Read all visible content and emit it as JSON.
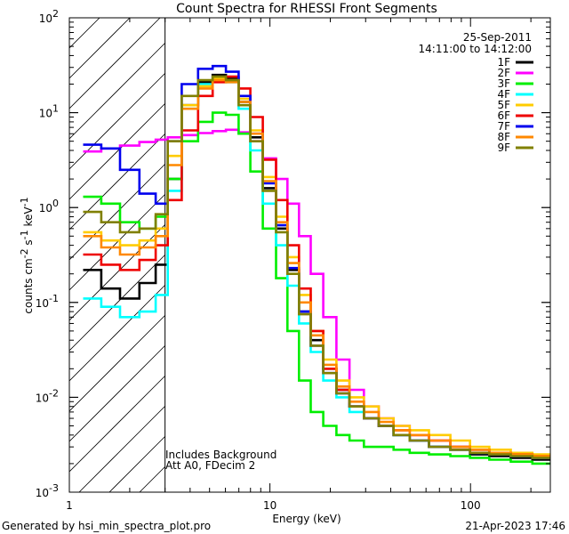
{
  "chart_data": {
    "type": "line",
    "title": "Count Spectra for RHESSI Front Segments",
    "xlabel": "Energy (keV)",
    "ylabel_parts": {
      "prefix": "counts cm",
      "exp1": "-2",
      "mid1": " s",
      "exp2": "-1",
      "mid2": " keV",
      "exp3": "-1"
    },
    "xscale": "log",
    "yscale": "log",
    "xlim": [
      1,
      250
    ],
    "ylim": [
      0.001,
      100
    ],
    "x_ticks": [
      1,
      10,
      100
    ],
    "x_tick_labels": [
      "1",
      "10",
      "100"
    ],
    "y_ticks": [
      0.001,
      0.01,
      0.1,
      1,
      10,
      100
    ],
    "y_tick_labels": [
      {
        "base": "10",
        "exp": "-3"
      },
      {
        "base": "10",
        "exp": "-2"
      },
      {
        "base": "10",
        "exp": "-1"
      },
      {
        "base": "10",
        "exp": "0"
      },
      {
        "base": "10",
        "exp": "1"
      },
      {
        "base": "10",
        "exp": "2"
      }
    ],
    "hatched_region_keV": [
      1,
      3
    ],
    "date": "25-Sep-2011",
    "time_range": "14:11:00 to 14:12:00",
    "annotations": [
      "Includes Background",
      "Att A0, FDecim 2"
    ],
    "x_energy_keV": [
      1.3,
      1.6,
      2.0,
      2.5,
      2.9,
      3.3,
      4.0,
      4.8,
      5.6,
      6.5,
      7.5,
      8.5,
      10,
      11.5,
      13,
      15,
      17,
      20,
      23,
      27,
      32,
      38,
      45,
      55,
      70,
      90,
      110,
      140,
      180,
      230
    ],
    "series": [
      {
        "name": "1F",
        "color": "#000000",
        "values": [
          0.22,
          0.14,
          0.11,
          0.16,
          0.25,
          2.0,
          12,
          21,
          25,
          23,
          13,
          5.5,
          1.6,
          0.6,
          0.22,
          0.08,
          0.04,
          0.02,
          0.012,
          0.008,
          0.006,
          0.005,
          0.004,
          0.0035,
          0.003,
          0.0028,
          0.0025,
          0.0024,
          0.0023,
          0.0022
        ]
      },
      {
        "name": "2F",
        "color": "#ff00ff",
        "values": [
          3.9,
          4.2,
          4.5,
          4.9,
          5.2,
          5.5,
          5.8,
          6.1,
          6.4,
          6.6,
          6.2,
          5.0,
          3.3,
          2.0,
          1.1,
          0.5,
          0.2,
          0.07,
          0.025,
          0.012,
          0.008,
          0.006,
          0.005,
          0.004,
          0.0035,
          0.003,
          0.0028,
          0.0026,
          0.0025,
          0.0024
        ]
      },
      {
        "name": "3F",
        "color": "#00ee00",
        "values": [
          1.3,
          1.1,
          0.7,
          0.6,
          0.8,
          2.0,
          5.0,
          8.0,
          10,
          9.5,
          6.0,
          2.4,
          0.6,
          0.18,
          0.05,
          0.015,
          0.007,
          0.005,
          0.004,
          0.0035,
          0.003,
          0.003,
          0.0028,
          0.0026,
          0.0025,
          0.0024,
          0.0023,
          0.0022,
          0.0021,
          0.002
        ]
      },
      {
        "name": "4F",
        "color": "#00ffff",
        "values": [
          0.11,
          0.09,
          0.07,
          0.08,
          0.12,
          1.5,
          11,
          20,
          23,
          21,
          11,
          4.0,
          1.1,
          0.4,
          0.15,
          0.06,
          0.03,
          0.015,
          0.01,
          0.007,
          0.006,
          0.005,
          0.004,
          0.0035,
          0.003,
          0.0028,
          0.0026,
          0.0025,
          0.0024,
          0.0023
        ]
      },
      {
        "name": "5F",
        "color": "#ffcc00",
        "values": [
          0.55,
          0.45,
          0.4,
          0.45,
          0.6,
          3.5,
          12,
          19,
          23,
          22,
          14,
          6.5,
          2.1,
          0.8,
          0.3,
          0.12,
          0.05,
          0.025,
          0.015,
          0.01,
          0.008,
          0.006,
          0.005,
          0.0045,
          0.004,
          0.0035,
          0.003,
          0.0028,
          0.0026,
          0.0025
        ]
      },
      {
        "name": "6F",
        "color": "#ee0000",
        "values": [
          0.32,
          0.25,
          0.22,
          0.28,
          0.4,
          1.2,
          6.5,
          15,
          21,
          24,
          18,
          9.0,
          3.2,
          1.2,
          0.4,
          0.14,
          0.05,
          0.02,
          0.012,
          0.008,
          0.006,
          0.005,
          0.0045,
          0.004,
          0.0035,
          0.003,
          0.0028,
          0.0026,
          0.0025,
          0.0024
        ]
      },
      {
        "name": "7F",
        "color": "#0000ee",
        "values": [
          4.6,
          4.2,
          2.5,
          1.4,
          1.1,
          5.0,
          20,
          29,
          31,
          27,
          15,
          6.0,
          1.8,
          0.65,
          0.23,
          0.08,
          0.035,
          0.018,
          0.011,
          0.008,
          0.006,
          0.005,
          0.004,
          0.0035,
          0.003,
          0.0028,
          0.0026,
          0.0025,
          0.0024,
          0.0023
        ]
      },
      {
        "name": "8F",
        "color": "#ff8800",
        "values": [
          0.5,
          0.38,
          0.32,
          0.38,
          0.5,
          2.8,
          11,
          18,
          22,
          21,
          13,
          6.0,
          1.9,
          0.7,
          0.26,
          0.1,
          0.045,
          0.022,
          0.013,
          0.009,
          0.007,
          0.0055,
          0.0045,
          0.004,
          0.0035,
          0.003,
          0.0028,
          0.0026,
          0.0025,
          0.0024
        ]
      },
      {
        "name": "9F",
        "color": "#808000",
        "values": [
          0.9,
          0.7,
          0.55,
          0.6,
          0.85,
          5.0,
          15,
          22,
          24,
          22,
          12,
          5.0,
          1.5,
          0.55,
          0.2,
          0.075,
          0.035,
          0.018,
          0.011,
          0.008,
          0.006,
          0.005,
          0.004,
          0.0035,
          0.003,
          0.0028,
          0.0026,
          0.0025,
          0.0024,
          0.0023
        ]
      }
    ]
  },
  "footer": {
    "generated_by": "Generated by hsi_min_spectra_plot.pro",
    "timestamp": "21-Apr-2023 17:46"
  }
}
